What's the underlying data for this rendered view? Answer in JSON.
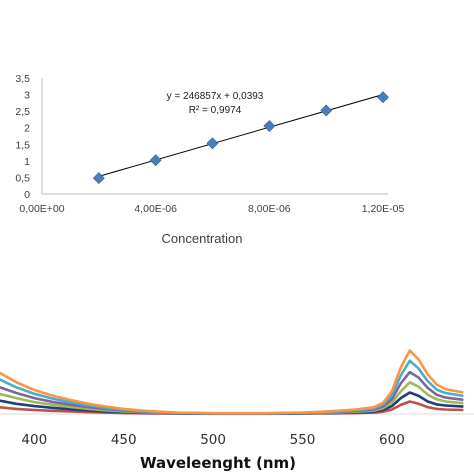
{
  "chart_data": [
    {
      "type": "scatter",
      "title": "",
      "xlabel": "Concentration",
      "ylabel": "",
      "xlim": [
        0,
        1.2e-05
      ],
      "ylim": [
        0,
        3.5
      ],
      "x_tick_labels": [
        "0,00E+00",
        "4,00E-06",
        "8,00E-06",
        "1,20E-05"
      ],
      "y_tick_labels": [
        "0",
        "0,5",
        "1",
        "1,5",
        "2",
        "2,5",
        "3",
        "3,5"
      ],
      "x": [
        2e-06,
        4e-06,
        6e-06,
        8e-06,
        1e-05,
        1.2e-05
      ],
      "y": [
        0.48,
        1.02,
        1.53,
        2.05,
        2.52,
        2.92
      ],
      "trendline": {
        "slope": 246857,
        "intercept": 0.0393
      },
      "equation_text": "y = 246857x + 0,0393",
      "r2_text": "R² = 0,9974",
      "marker_color": "#4a7ebb",
      "grid": false,
      "legend": "none"
    },
    {
      "type": "line",
      "title": "",
      "xlabel": "Waveleenght (nm)",
      "ylabel": "",
      "xlim": [
        365,
        640
      ],
      "x_tick_labels": [
        "400",
        "450",
        "500",
        "550",
        "600"
      ],
      "x_ticks": [
        400,
        450,
        500,
        550,
        600
      ],
      "x": [
        365,
        380,
        390,
        400,
        410,
        420,
        430,
        440,
        450,
        460,
        470,
        480,
        500,
        530,
        550,
        560,
        570,
        580,
        590,
        595,
        600,
        605,
        610,
        615,
        620,
        625,
        630,
        640
      ],
      "series": [
        {
          "color": "#c0504d",
          "values": [
            0.11,
            0.06,
            0.045,
            0.035,
            0.028,
            0.022,
            0.017,
            0.012,
            0.008,
            0.006,
            0.004,
            0.003,
            0.002,
            0.002,
            0.003,
            0.004,
            0.006,
            0.008,
            0.012,
            0.02,
            0.04,
            0.08,
            0.11,
            0.09,
            0.06,
            0.045,
            0.04,
            0.035
          ]
        },
        {
          "color": "#1f3f7a",
          "values": [
            0.19,
            0.12,
            0.09,
            0.07,
            0.055,
            0.042,
            0.032,
            0.023,
            0.016,
            0.011,
            0.008,
            0.005,
            0.003,
            0.003,
            0.005,
            0.007,
            0.01,
            0.014,
            0.02,
            0.035,
            0.07,
            0.14,
            0.19,
            0.16,
            0.11,
            0.085,
            0.075,
            0.065
          ]
        },
        {
          "color": "#9bbb59",
          "values": [
            0.28,
            0.18,
            0.14,
            0.105,
            0.082,
            0.062,
            0.046,
            0.033,
            0.023,
            0.016,
            0.011,
            0.007,
            0.004,
            0.004,
            0.007,
            0.01,
            0.014,
            0.02,
            0.03,
            0.05,
            0.1,
            0.2,
            0.28,
            0.24,
            0.17,
            0.13,
            0.11,
            0.095
          ]
        },
        {
          "color": "#8064a2",
          "values": [
            0.37,
            0.24,
            0.185,
            0.14,
            0.108,
            0.082,
            0.061,
            0.044,
            0.03,
            0.021,
            0.014,
            0.009,
            0.005,
            0.005,
            0.009,
            0.013,
            0.019,
            0.027,
            0.04,
            0.066,
            0.13,
            0.27,
            0.37,
            0.32,
            0.23,
            0.17,
            0.145,
            0.125
          ]
        },
        {
          "color": "#4bacc6",
          "values": [
            0.47,
            0.31,
            0.235,
            0.178,
            0.137,
            0.104,
            0.077,
            0.055,
            0.038,
            0.026,
            0.017,
            0.011,
            0.006,
            0.006,
            0.011,
            0.016,
            0.024,
            0.034,
            0.05,
            0.082,
            0.165,
            0.34,
            0.47,
            0.4,
            0.29,
            0.215,
            0.185,
            0.16
          ]
        },
        {
          "color": "#f79646",
          "values": [
            0.56,
            0.37,
            0.28,
            0.212,
            0.163,
            0.124,
            0.092,
            0.066,
            0.045,
            0.031,
            0.02,
            0.013,
            0.007,
            0.007,
            0.013,
            0.019,
            0.028,
            0.04,
            0.06,
            0.098,
            0.2,
            0.41,
            0.56,
            0.48,
            0.35,
            0.26,
            0.22,
            0.19
          ]
        }
      ],
      "ylim": [
        0,
        0.6
      ],
      "grid": false,
      "legend": "none"
    }
  ]
}
